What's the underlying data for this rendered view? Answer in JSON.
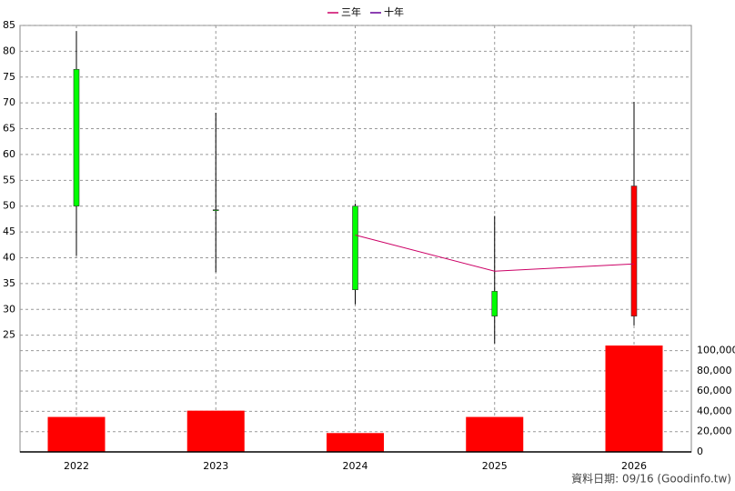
{
  "chart_data": [
    {
      "type": "candlestick",
      "categories": [
        "2022",
        "2023",
        "2024",
        "2025",
        "2026"
      ],
      "open": [
        76.5,
        49.3,
        50,
        33.5,
        28.7
      ],
      "high": [
        83.9,
        68.1,
        50.5,
        48.1,
        70.2
      ],
      "low": [
        40.4,
        37.2,
        31,
        23.4,
        26.9
      ],
      "close": [
        50,
        49.3,
        33.8,
        28.7,
        53.9
      ],
      "up_color": "#ff0000",
      "down_color": "#00ff00",
      "series": [
        {
          "name": "三年",
          "color": "#cc0066",
          "values": [
            null,
            null,
            44.4,
            37.4,
            38.8
          ]
        },
        {
          "name": "十年",
          "color": "#660099",
          "values": [
            null,
            null,
            null,
            null,
            null
          ]
        }
      ],
      "ylim": [
        23,
        85
      ],
      "yticks": [
        25,
        30,
        35,
        40,
        45,
        50,
        55,
        60,
        65,
        70,
        75,
        80,
        85
      ],
      "grid": true
    },
    {
      "type": "bar",
      "color": "#ff0000",
      "values": [
        34500,
        40700,
        18600,
        34500,
        105000
      ],
      "ylim": [
        0,
        105000
      ],
      "yticks": [
        0,
        {
          "value": 20000,
          "label": "20,000"
        },
        {
          "value": 40000,
          "label": "40,000"
        },
        {
          "value": 60000,
          "label": "60,000"
        },
        {
          "value": 80000,
          "label": "80,000"
        },
        {
          "value": 100000,
          "label": "100,000"
        }
      ],
      "grid": true
    }
  ],
  "footer": "資料日期: 09/16  (Goodinfo.tw)"
}
